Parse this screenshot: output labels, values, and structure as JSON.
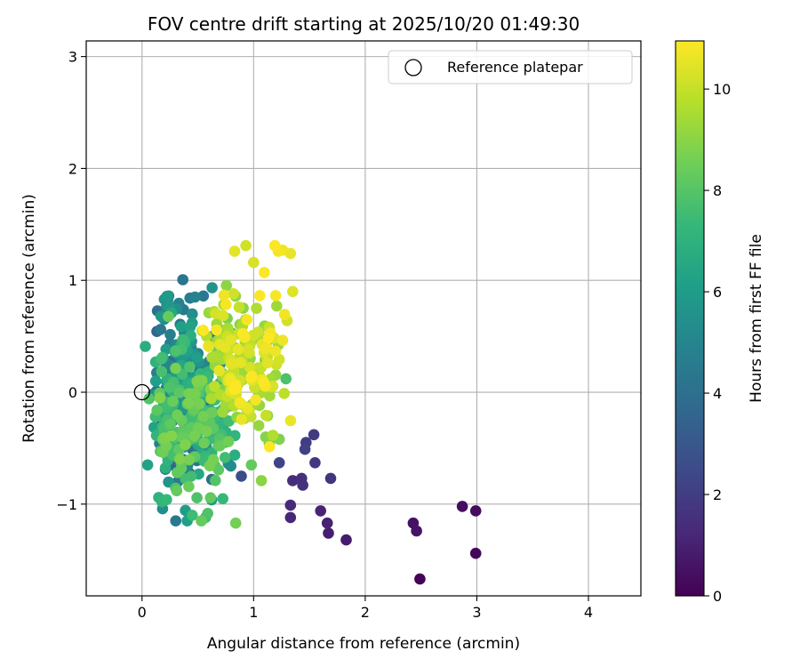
{
  "chart_data": {
    "type": "scatter",
    "title": "FOV centre drift starting at 2025/10/20 01:49:30",
    "xlabel": "Angular distance from reference (arcmin)",
    "ylabel": "Rotation from reference (arcmin)",
    "xlim": [
      -0.5,
      4.47
    ],
    "ylim": [
      -1.82,
      3.14
    ],
    "xticks": [
      0,
      1,
      2,
      3,
      4
    ],
    "xtick_labels": [
      "0",
      "1",
      "2",
      "3",
      "4"
    ],
    "yticks": [
      -1,
      0,
      1,
      2,
      3
    ],
    "ytick_labels": [
      "−1",
      "0",
      "1",
      "2",
      "3"
    ],
    "grid": true,
    "legend": {
      "position": "top-right",
      "entries": [
        "Reference platepar"
      ]
    },
    "reference_point": {
      "x": 0,
      "y": 0,
      "label": "Reference platepar"
    },
    "colorbar": {
      "label": "Hours from first FF file",
      "range": [
        0,
        10.95
      ],
      "ticks": [
        0,
        2,
        4,
        6,
        8,
        10
      ],
      "tick_labels": [
        "0",
        "2",
        "4",
        "6",
        "8",
        "10"
      ],
      "colormap": "viridis"
    },
    "labeled_points": [
      {
        "x": 2.49,
        "y": -1.67,
        "c": 0.1
      },
      {
        "x": 2.99,
        "y": -1.44,
        "c": 0.2
      },
      {
        "x": 2.99,
        "y": -1.06,
        "c": 0.3
      },
      {
        "x": 2.87,
        "y": -1.02,
        "c": 0.4
      },
      {
        "x": 2.43,
        "y": -1.17,
        "c": 0.5
      },
      {
        "x": 2.46,
        "y": -1.24,
        "c": 0.6
      },
      {
        "x": 1.83,
        "y": -1.32,
        "c": 0.8
      },
      {
        "x": 1.67,
        "y": -1.26,
        "c": 0.9
      },
      {
        "x": 1.66,
        "y": -1.17,
        "c": 1.0
      },
      {
        "x": 1.6,
        "y": -1.06,
        "c": 1.1
      },
      {
        "x": 1.33,
        "y": -1.12,
        "c": 1.2
      },
      {
        "x": 1.33,
        "y": -1.01,
        "c": 1.3
      },
      {
        "x": 1.35,
        "y": -0.79,
        "c": 1.4
      },
      {
        "x": 1.43,
        "y": -0.77,
        "c": 1.5
      },
      {
        "x": 1.44,
        "y": -0.83,
        "c": 1.6
      },
      {
        "x": 1.69,
        "y": -0.77,
        "c": 1.7
      },
      {
        "x": 1.55,
        "y": -0.63,
        "c": 1.8
      },
      {
        "x": 1.54,
        "y": -0.38,
        "c": 1.9
      },
      {
        "x": 1.47,
        "y": -0.45,
        "c": 2.0
      },
      {
        "x": 1.46,
        "y": -0.51,
        "c": 2.1
      },
      {
        "x": 1.23,
        "y": -0.63,
        "c": 2.2
      },
      {
        "x": 0.89,
        "y": -0.75,
        "c": 2.6
      },
      {
        "x": 0.55,
        "y": 0.86,
        "c": 4.5
      },
      {
        "x": 0.24,
        "y": 0.86,
        "c": 5.5
      },
      {
        "x": 0.2,
        "y": 0.83,
        "c": 5.6
      },
      {
        "x": 0.22,
        "y": 0.77,
        "c": 5.7
      },
      {
        "x": 0.17,
        "y": 0.68,
        "c": 5.8
      },
      {
        "x": 0.03,
        "y": 0.41,
        "c": 6.8
      },
      {
        "x": 0.05,
        "y": -0.65,
        "c": 6.3
      },
      {
        "x": 0.22,
        "y": -0.96,
        "c": 7.3
      },
      {
        "x": 0.45,
        "y": -1.1,
        "c": 7.5
      },
      {
        "x": 0.57,
        "y": -1.12,
        "c": 7.6
      },
      {
        "x": 0.84,
        "y": -1.17,
        "c": 8.6
      },
      {
        "x": 0.98,
        "y": -0.65,
        "c": 8.3
      },
      {
        "x": 1.07,
        "y": -0.79,
        "c": 9.0
      },
      {
        "x": 1.23,
        "y": -0.42,
        "c": 8.8
      },
      {
        "x": 1.14,
        "y": -0.46,
        "c": 8.4
      },
      {
        "x": 1.29,
        "y": 0.12,
        "c": 7.8
      },
      {
        "x": 0.83,
        "y": 1.26,
        "c": 10.5
      },
      {
        "x": 1.0,
        "y": 1.16,
        "c": 10.3
      },
      {
        "x": 1.19,
        "y": 1.31,
        "c": 10.9
      },
      {
        "x": 1.26,
        "y": 1.27,
        "c": 10.7
      },
      {
        "x": 1.33,
        "y": 1.24,
        "c": 10.6
      },
      {
        "x": 1.22,
        "y": 1.26,
        "c": 10.8
      },
      {
        "x": 1.3,
        "y": 0.64,
        "c": 10.2
      },
      {
        "x": 1.35,
        "y": 0.9,
        "c": 10.4
      },
      {
        "x": 1.14,
        "y": 0.58,
        "c": 10.1
      },
      {
        "x": 0.87,
        "y": 0.76,
        "c": 10.0
      },
      {
        "x": 0.82,
        "y": 0.88,
        "c": 10.2
      },
      {
        "x": 0.7,
        "y": 0.53,
        "c": 9.1
      },
      {
        "x": 0.9,
        "y": 0.59,
        "c": 9.6
      }
    ],
    "cloud_summary": {
      "point_count": 600,
      "x_range": [
        0.0,
        1.4
      ],
      "y_range": [
        -1.15,
        1.31
      ],
      "note": "dense cluster; color (hours) increases with x"
    },
    "colormap_stops": [
      "#440154",
      "#482878",
      "#3e4989",
      "#31688e",
      "#26828e",
      "#1f9e89",
      "#35b779",
      "#6ece58",
      "#b5de2b",
      "#fde725"
    ]
  }
}
